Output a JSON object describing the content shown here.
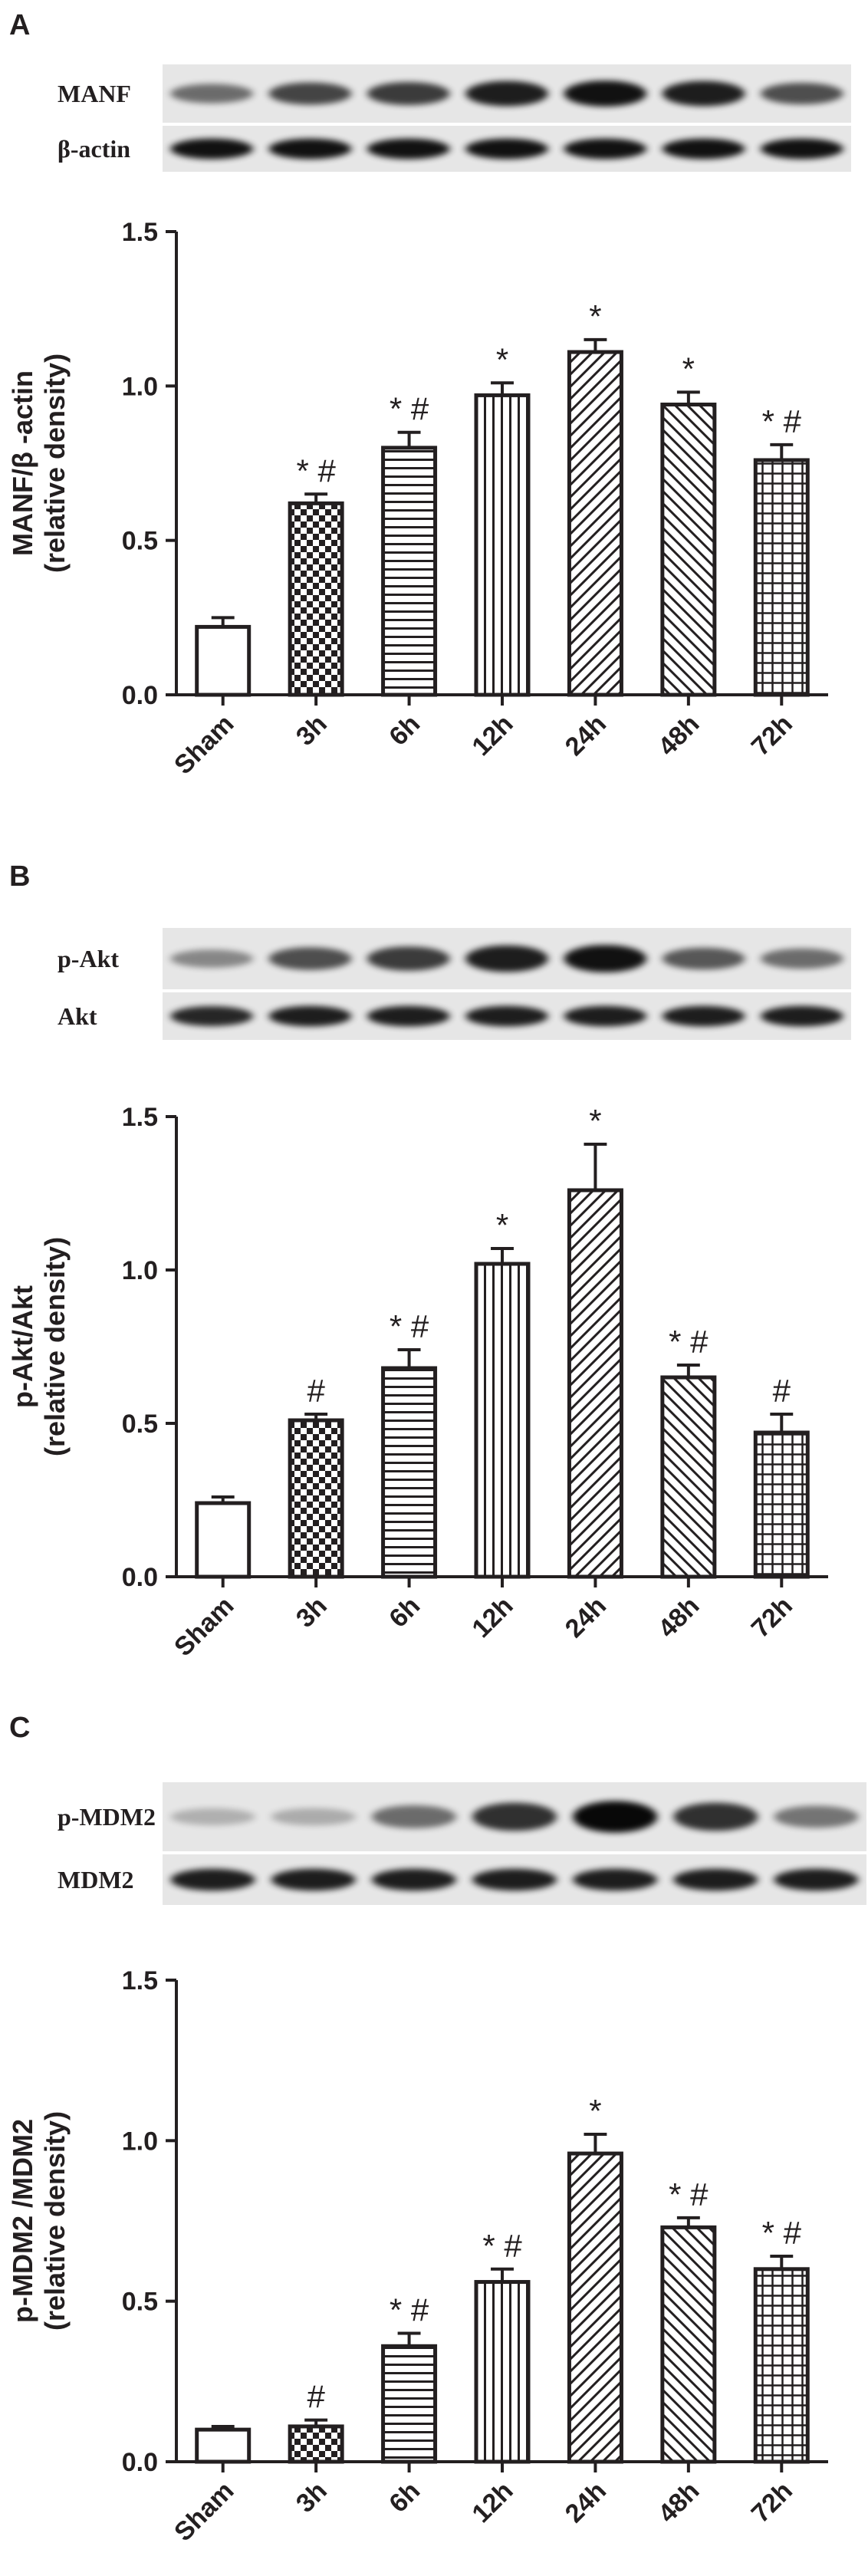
{
  "panels": [
    {
      "letter": "A",
      "blot": {
        "top_label": "MANF",
        "bottom_label": "β-actin",
        "top_band_intensity": [
          0.45,
          0.65,
          0.7,
          0.85,
          0.9,
          0.85,
          0.6
        ],
        "bottom_band_intensity": [
          0.9,
          0.9,
          0.9,
          0.9,
          0.9,
          0.9,
          0.9
        ]
      },
      "chart_data": {
        "type": "bar",
        "categories": [
          "Sham",
          "3h",
          "6h",
          "12h",
          "24h",
          "48h",
          "72h"
        ],
        "values": [
          0.22,
          0.62,
          0.8,
          0.97,
          1.11,
          0.94,
          0.76
        ],
        "errors": [
          0.03,
          0.03,
          0.05,
          0.04,
          0.04,
          0.04,
          0.05
        ],
        "significance": [
          "",
          "* #",
          "* #",
          "*",
          "*",
          "*",
          "* #"
        ],
        "ylabel": [
          "MANF/β -actin",
          "(relative density)"
        ],
        "ylim": [
          0,
          1.5
        ],
        "yticks": [
          "0.0",
          "0.5",
          "1.0",
          "1.5"
        ],
        "patterns": [
          "none",
          "checker",
          "hlines",
          "vlines",
          "diag-up",
          "diag-down",
          "grid"
        ]
      }
    },
    {
      "letter": "B",
      "blot": {
        "top_label": "p-Akt",
        "bottom_label": "Akt",
        "top_band_intensity": [
          0.3,
          0.6,
          0.7,
          0.85,
          0.9,
          0.55,
          0.45
        ],
        "bottom_band_intensity": [
          0.8,
          0.85,
          0.85,
          0.85,
          0.85,
          0.85,
          0.85
        ]
      },
      "chart_data": {
        "type": "bar",
        "categories": [
          "Sham",
          "3h",
          "6h",
          "12h",
          "24h",
          "48h",
          "72h"
        ],
        "values": [
          0.24,
          0.51,
          0.68,
          1.02,
          1.26,
          0.65,
          0.47
        ],
        "errors": [
          0.02,
          0.02,
          0.06,
          0.05,
          0.15,
          0.04,
          0.06
        ],
        "significance": [
          "",
          "#",
          "* #",
          "*",
          "*",
          "* #",
          "#"
        ],
        "ylabel": [
          "p-Akt/Akt",
          "(relative density)"
        ],
        "ylim": [
          0,
          1.5
        ],
        "yticks": [
          "0.0",
          "0.5",
          "1.0",
          "1.5"
        ],
        "patterns": [
          "none",
          "checker",
          "hlines",
          "vlines",
          "diag-up",
          "diag-down",
          "grid"
        ]
      }
    },
    {
      "letter": "C",
      "blot": {
        "top_label": "p-MDM2",
        "bottom_label": "MDM2",
        "top_band_intensity": [
          0.1,
          0.12,
          0.45,
          0.75,
          0.95,
          0.75,
          0.4
        ],
        "bottom_band_intensity": [
          0.85,
          0.85,
          0.85,
          0.85,
          0.85,
          0.85,
          0.85
        ]
      },
      "chart_data": {
        "type": "bar",
        "categories": [
          "Sham",
          "3h",
          "6h",
          "12h",
          "24h",
          "48h",
          "72h"
        ],
        "values": [
          0.1,
          0.11,
          0.36,
          0.56,
          0.96,
          0.73,
          0.6
        ],
        "errors": [
          0.01,
          0.02,
          0.04,
          0.04,
          0.06,
          0.03,
          0.04
        ],
        "significance": [
          "",
          "#",
          "* #",
          "* #",
          "*",
          "* #",
          "* #"
        ],
        "ylabel": [
          "p-MDM2 /MDM2",
          "(relative density)"
        ],
        "ylim": [
          0,
          1.5
        ],
        "yticks": [
          "0.0",
          "0.5",
          "1.0",
          "1.5"
        ],
        "patterns": [
          "none",
          "checker",
          "hlines",
          "vlines",
          "diag-up",
          "diag-down",
          "grid"
        ]
      }
    }
  ]
}
